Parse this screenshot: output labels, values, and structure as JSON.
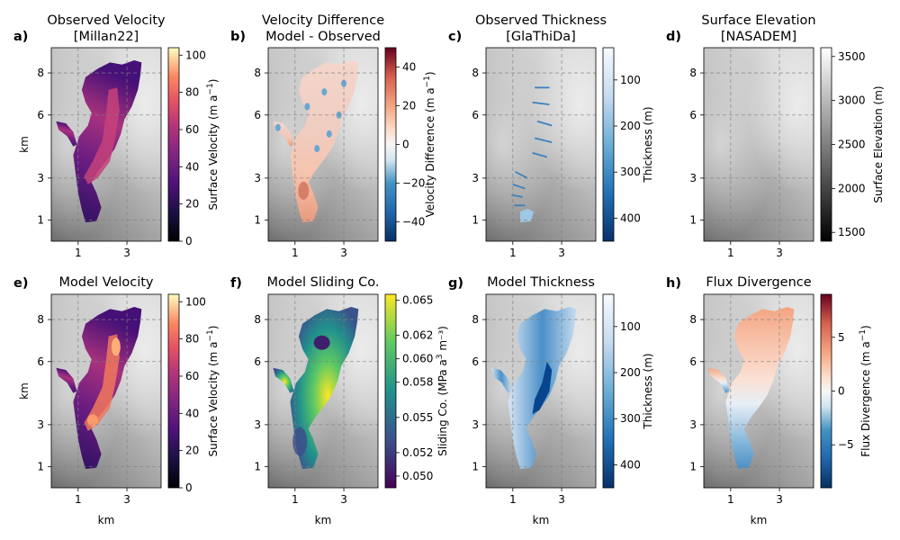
{
  "figure": {
    "panels": [
      {
        "letter": "a)",
        "title": [
          "Observed Velocity",
          "[Millan22]"
        ],
        "cmap": "magma",
        "cbar_ticks": [
          "0",
          "20",
          "40",
          "60",
          "80",
          "100"
        ],
        "cbar_label_main": "Surface Velocity (m a",
        "cbar_label_sup": "−1",
        "cbar_label_end": ")",
        "field": "velocity_obs"
      },
      {
        "letter": "b)",
        "title": [
          "Velocity Difference",
          "Model - Observed"
        ],
        "cmap": "rdbu",
        "cbar_ticks": [
          "40",
          "20",
          "0",
          "−20",
          "−40"
        ],
        "cbar_label_main": "Velocity Difference (m a",
        "cbar_label_sup": "−1",
        "cbar_label_end": ")",
        "field": "difference"
      },
      {
        "letter": "c)",
        "title": [
          "Observed Thickness",
          "[GlaThiDa]"
        ],
        "cmap": "blues",
        "cbar_ticks": [
          "100",
          "200",
          "300",
          "400"
        ],
        "cbar_label_main": "Thickness (m)",
        "cbar_label_sup": "",
        "cbar_label_end": "",
        "field": "thickness_obs"
      },
      {
        "letter": "d)",
        "title": [
          "Surface Elevation",
          "[NASADEM]"
        ],
        "cmap": "gray",
        "cbar_ticks": [
          "3500",
          "3000",
          "2500",
          "2000",
          "1500"
        ],
        "cbar_label_main": "Surface Elevation (m)",
        "cbar_label_sup": "",
        "cbar_label_end": "",
        "field": "none"
      },
      {
        "letter": "e)",
        "title": [
          "Model Velocity"
        ],
        "cmap": "magma",
        "cbar_ticks": [
          "0",
          "20",
          "40",
          "60",
          "80",
          "100"
        ],
        "cbar_label_main": "Surface Velocity (m a",
        "cbar_label_sup": "−1",
        "cbar_label_end": ")",
        "field": "velocity_model"
      },
      {
        "letter": "f)",
        "title": [
          "Model Sliding Co."
        ],
        "cmap": "viridis",
        "cbar_ticks": [
          "0.065",
          "0.062",
          "0.060",
          "0.058",
          "0.055",
          "0.052",
          "0.050"
        ],
        "cbar_label_main": "Sliding Co. (MPa a",
        "cbar_label_sup": "3",
        "cbar_label_end": " m⁻³)",
        "field": "sliding"
      },
      {
        "letter": "g)",
        "title": [
          "Model Thickness"
        ],
        "cmap": "blues",
        "cbar_ticks": [
          "100",
          "200",
          "300",
          "400"
        ],
        "cbar_label_main": "Thickness (m)",
        "cbar_label_sup": "",
        "cbar_label_end": "",
        "field": "thickness_model"
      },
      {
        "letter": "h)",
        "title": [
          "Flux Divergence"
        ],
        "cmap": "rdbu",
        "cbar_ticks": [
          "5",
          "0",
          "−5"
        ],
        "cbar_label_main": "Flux Divergence (m a",
        "cbar_label_sup": "−1",
        "cbar_label_end": ")",
        "field": "flux"
      }
    ],
    "y_ticks": [
      "8",
      "6",
      "3",
      "1"
    ],
    "x_ticks": [
      "1",
      "3"
    ],
    "ylabel": "km",
    "xlabel": "km"
  },
  "chart_data": [
    {
      "type": "heatmap",
      "title": "Observed Velocity [Millan22]",
      "xlabel": "",
      "ylabel": "km",
      "x_ticks": [
        1,
        3
      ],
      "y_ticks": [
        1,
        3,
        6,
        8
      ],
      "colorbar": {
        "label": "Surface Velocity (m a−1)",
        "range": [
          0,
          104
        ],
        "ticks": [
          0,
          20,
          40,
          60,
          80,
          100
        ],
        "cmap": "magma"
      }
    },
    {
      "type": "heatmap",
      "title": "Velocity Difference Model - Observed",
      "x_ticks": [
        1,
        3
      ],
      "y_ticks": [
        1,
        3,
        6,
        8
      ],
      "colorbar": {
        "label": "Velocity Difference (m a−1)",
        "range": [
          -50,
          50
        ],
        "ticks": [
          -40,
          -20,
          0,
          20,
          40
        ],
        "cmap": "RdBu_r"
      }
    },
    {
      "type": "heatmap",
      "title": "Observed Thickness [GlaThiDa]",
      "x_ticks": [
        1,
        3
      ],
      "y_ticks": [
        1,
        3,
        6,
        8
      ],
      "colorbar": {
        "label": "Thickness (m)",
        "range": [
          450,
          30
        ],
        "ticks": [
          100,
          200,
          300,
          400
        ],
        "cmap": "Blues",
        "inverted": true
      }
    },
    {
      "type": "heatmap",
      "title": "Surface Elevation [NASADEM]",
      "x_ticks": [
        1,
        3
      ],
      "y_ticks": [
        1,
        3,
        6,
        8
      ],
      "colorbar": {
        "label": "Surface Elevation (m)",
        "range": [
          1400,
          3600
        ],
        "ticks": [
          1500,
          2000,
          2500,
          3000,
          3500
        ],
        "cmap": "gray"
      }
    },
    {
      "type": "heatmap",
      "title": "Model Velocity",
      "xlabel": "km",
      "ylabel": "km",
      "x_ticks": [
        1,
        3
      ],
      "y_ticks": [
        1,
        3,
        6,
        8
      ],
      "colorbar": {
        "label": "Surface Velocity (m a−1)",
        "range": [
          0,
          104
        ],
        "ticks": [
          0,
          20,
          40,
          60,
          80,
          100
        ],
        "cmap": "magma"
      }
    },
    {
      "type": "heatmap",
      "title": "Model Sliding Co.",
      "xlabel": "km",
      "x_ticks": [
        1,
        3
      ],
      "y_ticks": [
        1,
        3,
        6,
        8
      ],
      "colorbar": {
        "label": "Sliding Co. (MPa a3 m−3)",
        "range": [
          0.049,
          0.0655
        ],
        "ticks": [
          0.05,
          0.052,
          0.055,
          0.058,
          0.06,
          0.062,
          0.065
        ],
        "cmap": "viridis"
      }
    },
    {
      "type": "heatmap",
      "title": "Model Thickness",
      "xlabel": "km",
      "x_ticks": [
        1,
        3
      ],
      "y_ticks": [
        1,
        3,
        6,
        8
      ],
      "colorbar": {
        "label": "Thickness (m)",
        "range": [
          450,
          30
        ],
        "ticks": [
          100,
          200,
          300,
          400
        ],
        "cmap": "Blues",
        "inverted": true
      }
    },
    {
      "type": "heatmap",
      "title": "Flux Divergence",
      "xlabel": "km",
      "x_ticks": [
        1,
        3
      ],
      "y_ticks": [
        1,
        3,
        6,
        8
      ],
      "colorbar": {
        "label": "Flux Divergence (m a−1)",
        "range": [
          -9,
          9
        ],
        "ticks": [
          -5,
          0,
          5
        ],
        "cmap": "RdBu_r"
      }
    }
  ]
}
